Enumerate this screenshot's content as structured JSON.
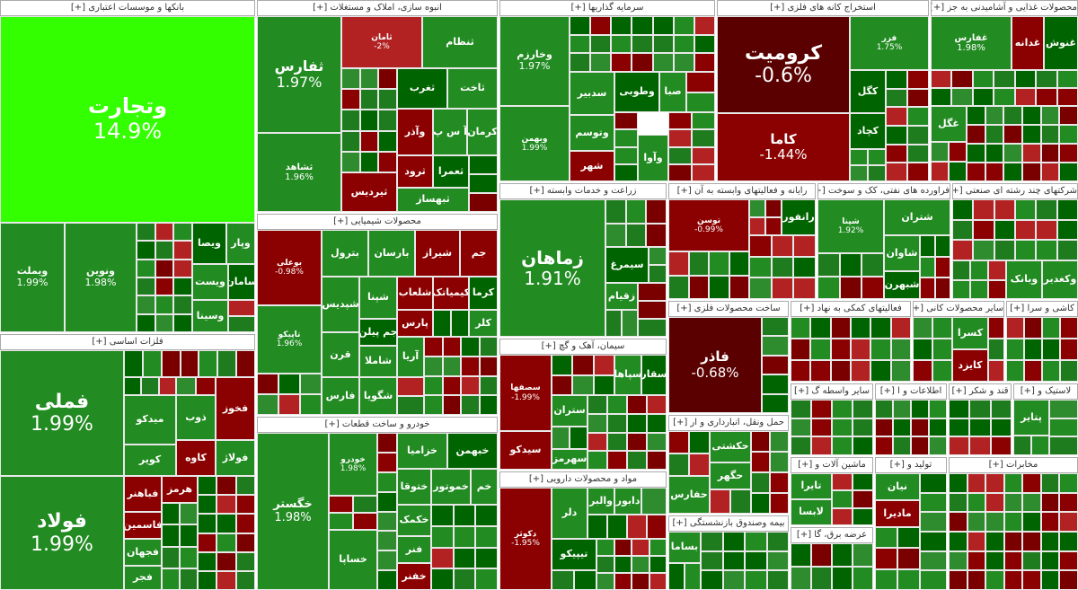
{
  "sectors": [
    {
      "title": "بانکها و موسسات اعتباری [+]",
      "tiles": [
        {
          "label": "وتجارت",
          "change": "14.9%"
        },
        {
          "label": "ویملت",
          "change": "1.99%"
        },
        {
          "label": "ونوین",
          "change": "1.98%"
        },
        {
          "label": "ویصا"
        },
        {
          "label": "وپار"
        },
        {
          "label": "ویست"
        },
        {
          "label": "سامان"
        },
        {
          "label": "وسینا"
        }
      ]
    },
    {
      "title": "فلزات اساسی [+]",
      "tiles": [
        {
          "label": "فملی",
          "change": "1.99%"
        },
        {
          "label": "فولاد",
          "change": "1.99%"
        },
        {
          "label": "ذوب"
        },
        {
          "label": "فخوز"
        },
        {
          "label": "میدکو"
        },
        {
          "label": "کاوه"
        },
        {
          "label": "فولاژ"
        },
        {
          "label": "کویر"
        },
        {
          "label": "هرمز"
        },
        {
          "label": "فباهنر"
        },
        {
          "label": "فاسمین"
        },
        {
          "label": "فجهان"
        },
        {
          "label": "فجر"
        }
      ]
    },
    {
      "title": "انبوه سازی، املاک و مستغلات [+]",
      "tiles": [
        {
          "label": "ثفارس",
          "change": "1.97%"
        },
        {
          "label": "ثشاهد",
          "change": "1.96%"
        },
        {
          "label": "ثامان",
          "change": "-2%"
        },
        {
          "label": "ثنظام"
        },
        {
          "label": "ثغرب"
        },
        {
          "label": "ثاخت"
        },
        {
          "label": "وآذر"
        },
        {
          "label": "آ س پ"
        },
        {
          "label": "کرمان"
        },
        {
          "label": "ثرود"
        },
        {
          "label": "ثعمرا"
        },
        {
          "label": "ثبهساز"
        },
        {
          "label": "ثیردیس"
        }
      ]
    },
    {
      "title": "محصولات شیمیایی [+]",
      "tiles": [
        {
          "label": "بوعلی",
          "change": "-0.98%"
        },
        {
          "label": "تاپیکو",
          "change": "1.96%"
        },
        {
          "label": "بترول"
        },
        {
          "label": "بارسان"
        },
        {
          "label": "شیراز"
        },
        {
          "label": "جم"
        },
        {
          "label": "شپدیس"
        },
        {
          "label": "شپنا"
        },
        {
          "label": "شلعاب"
        },
        {
          "label": "کیمیاتک"
        },
        {
          "label": "کرما"
        },
        {
          "label": "جم پیلن"
        },
        {
          "label": "پارس"
        },
        {
          "label": "کلر"
        },
        {
          "label": "قرن"
        },
        {
          "label": "شاملا"
        },
        {
          "label": "فارس"
        },
        {
          "label": "شگویا"
        },
        {
          "label": "آریا"
        }
      ]
    },
    {
      "title": "خودرو و ساخت قطعات [+]",
      "tiles": [
        {
          "label": "خگستر",
          "change": "1.98%"
        },
        {
          "label": "خودرو",
          "change": "1.98%"
        },
        {
          "label": "خساپا"
        },
        {
          "label": "خزامیا"
        },
        {
          "label": "خبهمن"
        },
        {
          "label": "ختوقا"
        },
        {
          "label": "خموتور"
        },
        {
          "label": "خم"
        },
        {
          "label": "خکمک"
        },
        {
          "label": "فنر"
        },
        {
          "label": "خفنر"
        }
      ]
    },
    {
      "title": "سرمایه گذاریها [+]",
      "tiles": [
        {
          "label": "وخارزم",
          "change": "1.97%"
        },
        {
          "label": "وبهمن",
          "change": "1.99%"
        },
        {
          "label": "سدبیر"
        },
        {
          "label": "وطوبی"
        },
        {
          "label": "صبا"
        },
        {
          "label": "وتوسم"
        },
        {
          "label": "شهر"
        },
        {
          "label": "وآوا"
        }
      ]
    },
    {
      "title": "زراعت و خدمات وابسته [+]",
      "tiles": [
        {
          "label": "زماهان",
          "change": "1.91%"
        },
        {
          "label": "سیمرغ"
        },
        {
          "label": "زقیام"
        }
      ]
    },
    {
      "title": "سیمان، آهک و گچ [+]",
      "tiles": [
        {
          "label": "سصفها",
          "change": "-1.99%"
        },
        {
          "label": "سیدکو"
        },
        {
          "label": "سپاها"
        },
        {
          "label": "سقار"
        },
        {
          "label": "ستران"
        },
        {
          "label": "سهرمز"
        }
      ]
    },
    {
      "title": "مواد و محصولات دارویی [+]",
      "tiles": [
        {
          "label": "دکوثر",
          "change": "-1.95%"
        },
        {
          "label": "دلر"
        },
        {
          "label": "تیپیکو"
        },
        {
          "label": "والبر"
        },
        {
          "label": "دابور"
        }
      ]
    },
    {
      "title": "استخراج کانه های فلزی [+]",
      "tiles": [
        {
          "label": "کرومیت",
          "change": "-0.6%"
        },
        {
          "label": "کاما",
          "change": "-1.44%"
        },
        {
          "label": "فزر",
          "change": "1.75%"
        },
        {
          "label": "کگل"
        },
        {
          "label": "کچاد"
        }
      ]
    },
    {
      "title": "محصولات غذایی و آشامیدنی به جز [+]",
      "tiles": [
        {
          "label": "غفارس",
          "change": "1.98%"
        },
        {
          "label": "غدانه"
        },
        {
          "label": "غنوش"
        },
        {
          "label": "غگل"
        }
      ]
    },
    {
      "title": "رایانه و فعالیتهای وابسته به آن [+]",
      "tiles": [
        {
          "label": "توسن",
          "change": "-0.99%"
        },
        {
          "label": "رانفور"
        }
      ]
    },
    {
      "title": "فراورده های نفتی، کک و سوخت [+]",
      "tiles": [
        {
          "label": "شپنا",
          "change": "1.92%"
        },
        {
          "label": "شتران"
        },
        {
          "label": "شاوان"
        },
        {
          "label": "شبهرن"
        }
      ]
    },
    {
      "title": "شرکتهای چند رشته ای صنعتی [+]",
      "tiles": [
        {
          "label": "وبانک"
        },
        {
          "label": "وکغدیر"
        }
      ]
    },
    {
      "title": "ساخت محصولات فلزی [+]",
      "tiles": [
        {
          "label": "فاذر",
          "change": "-0.68%"
        }
      ]
    },
    {
      "title": "فعالیتهای کمکی به نهاد [+]"
    },
    {
      "title": "سایر محصولات کانی [+]",
      "tiles": [
        {
          "label": "کسرا"
        },
        {
          "label": "کایزد"
        }
      ]
    },
    {
      "title": "کاشی و سرا [+]"
    },
    {
      "title": "حمل ونقل، انبارداری و ار [+]",
      "tiles": [
        {
          "label": "حکشتی"
        },
        {
          "label": "حگهر"
        },
        {
          "label": "حفارس"
        }
      ]
    },
    {
      "title": "بیمه وصندوق بازنشستگی [+]",
      "tiles": [
        {
          "label": "بساما"
        }
      ]
    },
    {
      "title": "ساير واسطه گ [+]"
    },
    {
      "title": "اطلاعات و ا [+]"
    },
    {
      "title": "قند و شکر [+]"
    },
    {
      "title": "لاستیک و [+]",
      "tiles": [
        {
          "label": "پتایر"
        }
      ]
    },
    {
      "title": "ماشین آلات و [+]",
      "tiles": [
        {
          "label": "تایرا"
        },
        {
          "label": "لابسا"
        }
      ]
    },
    {
      "title": "عرضه برق، گا [+]"
    },
    {
      "title": "تولید و [+]",
      "tiles": [
        {
          "label": "نیان"
        },
        {
          "label": "مادیرا"
        }
      ]
    },
    {
      "title": "مخابرات [+]"
    }
  ]
}
